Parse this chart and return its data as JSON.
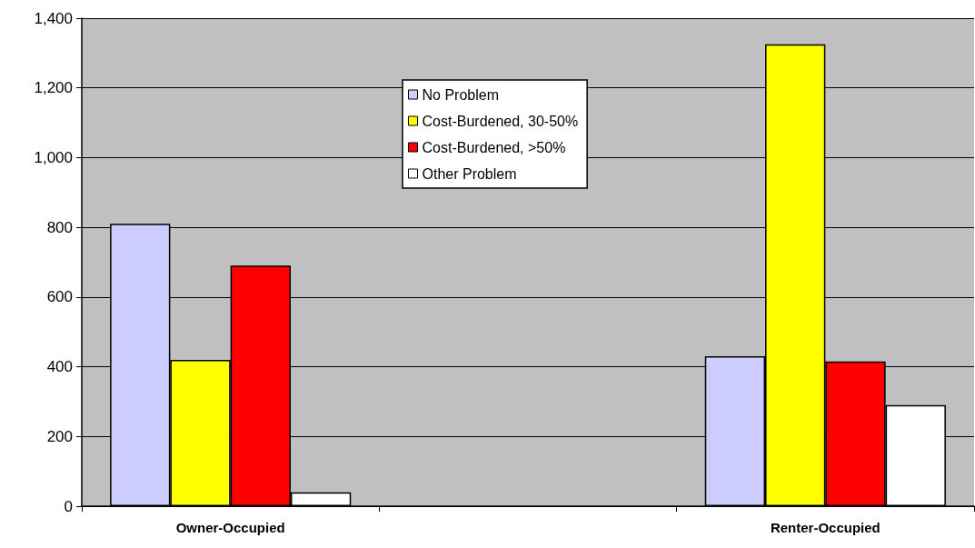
{
  "chart_data": {
    "type": "bar",
    "categories": [
      "Owner-Occupied",
      null,
      "Renter-Occupied"
    ],
    "series": [
      {
        "name": "No Problem",
        "color": "#ccccff",
        "values": [
          810,
          null,
          430
        ]
      },
      {
        "name": "Cost-Burdened, 30-50%",
        "color": "#ffff00",
        "values": [
          420,
          null,
          1325
        ]
      },
      {
        "name": "Cost-Burdened, >50%",
        "color": "#ff0000",
        "values": [
          690,
          null,
          415
        ]
      },
      {
        "name": "Other Problem",
        "color": "#ffffff",
        "values": [
          40,
          null,
          290
        ]
      }
    ],
    "ylim": [
      0,
      1400
    ],
    "yticks": [
      0,
      200,
      400,
      600,
      800,
      {
        "value": 1000,
        "label": "1,000"
      },
      {
        "value": 1200,
        "label": "1,200"
      },
      {
        "value": 1400,
        "label": "1,400"
      }
    ],
    "grid": "y",
    "legend": "top center"
  }
}
